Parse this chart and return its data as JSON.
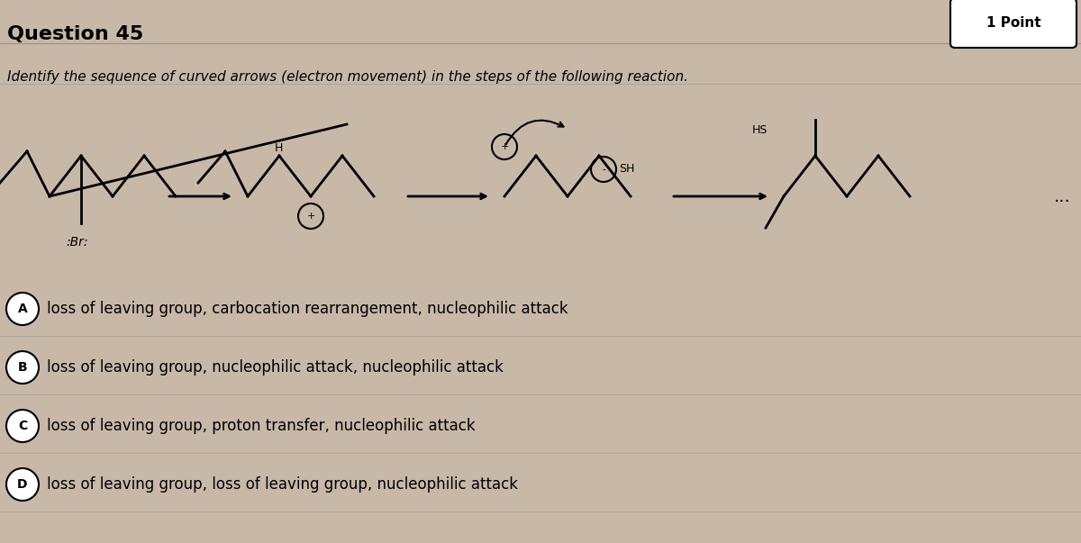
{
  "title": "Question 45",
  "point_label": "1 Point",
  "question_text": "Identify the sequence of curved arrows (electron movement) in the steps of the following reaction.",
  "options": [
    {
      "letter": "A",
      "text": "loss of leaving group, carbocation rearrangement, nucleophilic attack"
    },
    {
      "letter": "B",
      "text": "loss of leaving group, nucleophilic attack, nucleophilic attack"
    },
    {
      "letter": "C",
      "text": "loss of leaving group, proton transfer, nucleophilic attack"
    },
    {
      "letter": "D",
      "text": "loss of leaving group, loss of leaving group, nucleophilic attack"
    }
  ],
  "bg_color": "#c8b8a8",
  "text_color": "#000000",
  "title_fontsize": 16,
  "question_fontsize": 11,
  "option_fontsize": 12
}
